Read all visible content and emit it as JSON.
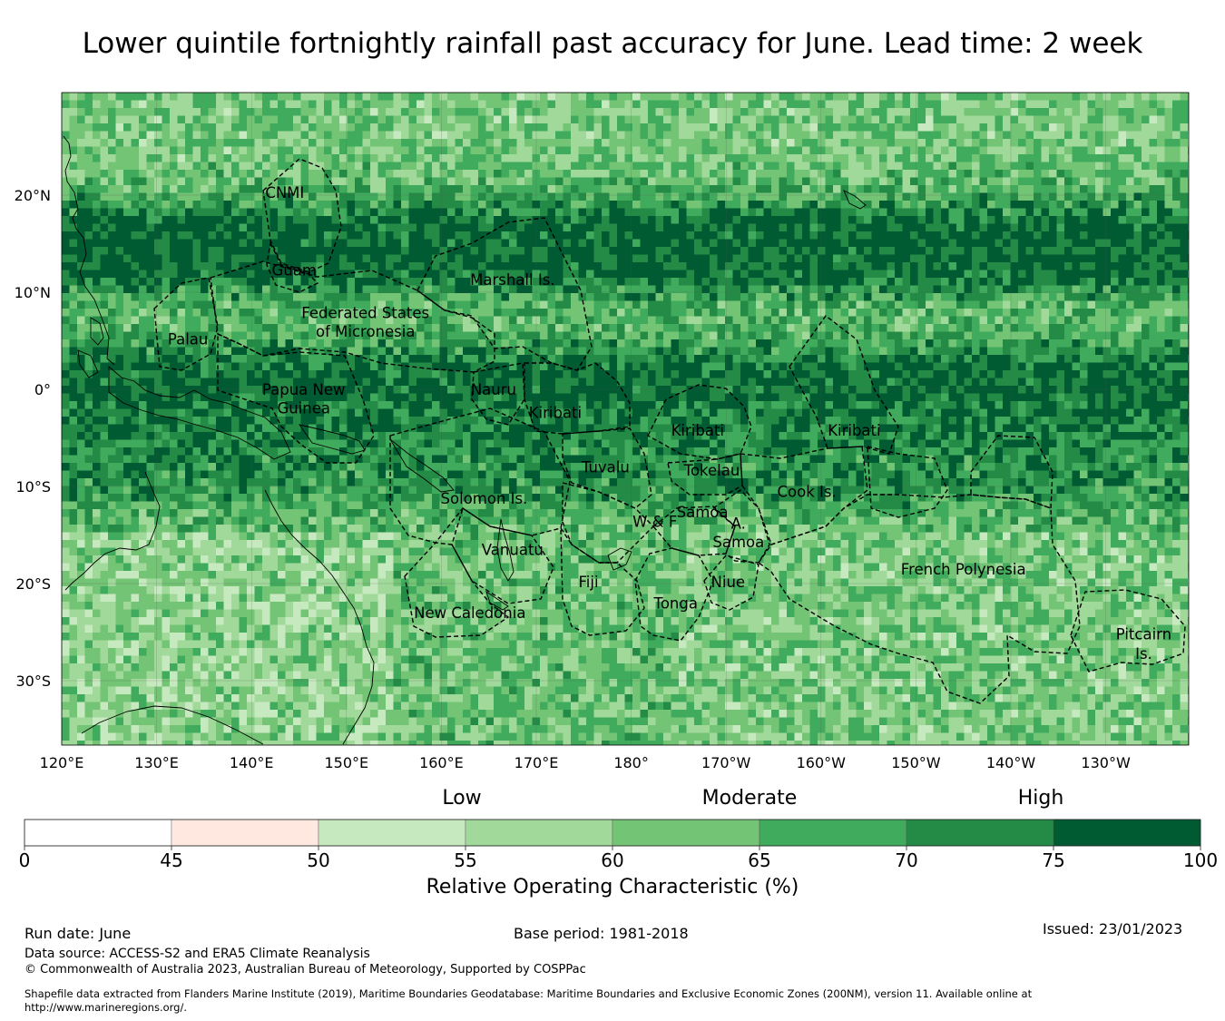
{
  "title": "Lower quintile fortnightly rainfall past accuracy for June. Lead time: 2 week",
  "map": {
    "lon_labels": [
      "120°E",
      "130°E",
      "140°E",
      "150°E",
      "160°E",
      "170°E",
      "180°",
      "170°W",
      "160°W",
      "150°W",
      "140°W",
      "130°W"
    ],
    "lat_labels": [
      "20°N",
      "10°N",
      "0°",
      "10°S",
      "20°S",
      "30°S"
    ],
    "regions": [
      {
        "label": "CNMI",
        "lon": 143.5,
        "lat": 20.3
      },
      {
        "label": "Guam",
        "lon": 144.5,
        "lat": 12.3
      },
      {
        "label": "Marshall Is.",
        "lon": 167.5,
        "lat": 11.3
      },
      {
        "label": "Federated States",
        "lon": 152.0,
        "lat": 7.9
      },
      {
        "label": "of Micronesia",
        "lon": 152.0,
        "lat": 6.0
      },
      {
        "label": "Palau",
        "lon": 133.3,
        "lat": 5.2
      },
      {
        "label": "Papua New",
        "lon": 145.5,
        "lat": 0.0
      },
      {
        "label": "Guinea",
        "lon": 145.5,
        "lat": -1.9
      },
      {
        "label": "Nauru",
        "lon": 165.5,
        "lat": 0.0
      },
      {
        "label": "Kiribati",
        "lon": 172.0,
        "lat": -2.4
      },
      {
        "label": "Kiribati",
        "lon": -173.0,
        "lat": -4.2
      },
      {
        "label": "Kiribati",
        "lon": -156.5,
        "lat": -4.2
      },
      {
        "label": "Tuvalu",
        "lon": 177.3,
        "lat": -8.0
      },
      {
        "label": "Tokelau",
        "lon": -171.5,
        "lat": -8.3
      },
      {
        "label": "Cook Is.",
        "lon": -161.5,
        "lat": -10.5
      },
      {
        "label": "Solomon Is.",
        "lon": 164.5,
        "lat": -11.2
      },
      {
        "label": "Samoa",
        "lon": -172.5,
        "lat": -12.6
      },
      {
        "label": "W & F",
        "lon": -177.5,
        "lat": -13.6
      },
      {
        "label": "A.",
        "lon": -168.7,
        "lat": -13.8
      },
      {
        "label": "Samoa",
        "lon": -168.7,
        "lat": -15.7
      },
      {
        "label": "Vanuatu",
        "lon": 167.5,
        "lat": -16.5
      },
      {
        "label": "Fiji",
        "lon": 175.5,
        "lat": -19.8
      },
      {
        "label": "Niue",
        "lon": -169.8,
        "lat": -19.8
      },
      {
        "label": "Tonga",
        "lon": -175.3,
        "lat": -22.0
      },
      {
        "label": "French Polynesia",
        "lon": -145.0,
        "lat": -18.5
      },
      {
        "label": "New Caledonia",
        "lon": 163.0,
        "lat": -23.0
      },
      {
        "label": "Pitcairn",
        "lon": -126.0,
        "lat": -25.2
      },
      {
        "label": "Is.",
        "lon": -126.0,
        "lat": -27.2
      }
    ]
  },
  "legend": {
    "categories": [
      "Low",
      "Moderate",
      "High"
    ],
    "ticks": [
      "0",
      "45",
      "50",
      "55",
      "60",
      "65",
      "70",
      "75",
      "100"
    ],
    "colors": [
      "#ffffff",
      "#fee8e0",
      "#c7e9c0",
      "#a1d99b",
      "#74c476",
      "#41ab5d",
      "#238b45",
      "#005a32"
    ],
    "label": "Relative Operating Characteristic (%)"
  },
  "footer": {
    "run_date": "Run date: June",
    "base_period": "Base period: 1981-2018",
    "issued": "Issued: 23/01/2023",
    "data_source": "Data source: ACCESS-S2 and ERA5 Climate Reanalysis",
    "copyright": "© Commonwealth of Australia 2023, Australian Bureau of Meteorology, Supported by COSPPac",
    "shapefile_line1": "Shapefile data extracted from Flanders Marine Institute (2019), Maritime Boundaries Geodatabase: Maritime Boundaries and Exclusive Economic Zones (200NM), version 11. Available online at",
    "shapefile_line2": "http://www.marineregions.org/."
  }
}
